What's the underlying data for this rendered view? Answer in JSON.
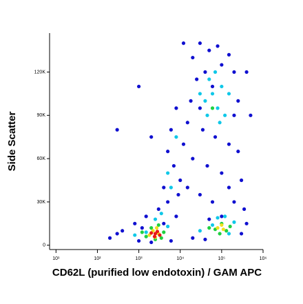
{
  "chart_data": {
    "type": "scatter",
    "x_label": "CD62L (purified low endotoxin) / GAM APC",
    "y_label": "Side Scatter",
    "xscale": "log",
    "xlim": [
      7,
      1000000
    ],
    "xticks": [
      {
        "value": 10,
        "label": "10¹"
      },
      {
        "value": 100,
        "label": "10²"
      },
      {
        "value": 1000,
        "label": "10³"
      },
      {
        "value": 10000,
        "label": "10⁴"
      },
      {
        "value": 100000,
        "label": "10⁵"
      },
      {
        "value": 1000000,
        "label": "10⁶"
      }
    ],
    "ylim": [
      -3000,
      147000
    ],
    "yticks": [
      0,
      {
        "value": 30000,
        "label": "30K"
      },
      {
        "value": 60000,
        "label": "60K"
      },
      {
        "value": 90000,
        "label": "90K"
      },
      {
        "value": 120000,
        "label": "120K"
      }
    ],
    "series": [
      {
        "color": "#1010d0",
        "x": [
          20000,
          30000,
          50000,
          80000,
          150000,
          200000,
          25000,
          40000,
          100000,
          250000,
          18000,
          30000,
          60000,
          200000,
          15000,
          35000,
          70000,
          150000,
          250000,
          12000,
          20000,
          45000,
          100000,
          300000,
          8000,
          6000,
          5000,
          7000,
          10000,
          4000,
          5000,
          9000,
          15000,
          30000,
          60000,
          200000,
          350000,
          3000,
          1500,
          800,
          400,
          200,
          300,
          1000,
          2000,
          6000,
          20000,
          40000,
          300000,
          400000,
          100000,
          50000,
          1200,
          4000,
          8000,
          150000,
          300,
          1000,
          2000,
          500000,
          400000,
          12000
        ],
        "values": [
          130000,
          140000,
          135000,
          138000,
          132000,
          120000,
          115000,
          120000,
          125000,
          100000,
          100000,
          95000,
          110000,
          90000,
          85000,
          80000,
          75000,
          70000,
          65000,
          70000,
          60000,
          55000,
          50000,
          45000,
          95000,
          80000,
          65000,
          55000,
          45000,
          40000,
          30000,
          35000,
          40000,
          35000,
          30000,
          30000,
          25000,
          25000,
          20000,
          15000,
          10000,
          5000,
          8000,
          3000,
          2000,
          3000,
          5000,
          4000,
          8000,
          15000,
          20000,
          18000,
          12000,
          15000,
          20000,
          40000,
          80000,
          110000,
          75000,
          90000,
          120000,
          140000
        ]
      },
      {
        "color": "#10c8e8",
        "x": [
          40000,
          60000,
          80000,
          100000,
          50000,
          120000,
          30000,
          70000,
          90000,
          45000,
          150000,
          8000,
          5000,
          6000,
          3500,
          2500,
          1500,
          5000,
          800,
          120000,
          60000,
          200000,
          30000,
          150000,
          80000
        ],
        "values": [
          100000,
          105000,
          95000,
          110000,
          115000,
          90000,
          105000,
          120000,
          85000,
          90000,
          105000,
          75000,
          50000,
          40000,
          22000,
          18000,
          9000,
          13000,
          7000,
          20000,
          14000,
          16000,
          10000,
          8000,
          19000
        ]
      },
      {
        "color": "#20d040",
        "x": [
          2000,
          3000,
          1500,
          4000,
          2500,
          1200,
          3500,
          70000,
          100000,
          130000,
          50000,
          90000,
          160000,
          60000
        ],
        "values": [
          12000,
          14000,
          6000,
          9000,
          4000,
          9000,
          5000,
          11000,
          15000,
          10000,
          12000,
          8000,
          13000,
          95000
        ]
      },
      {
        "color": "#f0e020",
        "x": [
          2200,
          3000,
          1800,
          2700,
          80000,
          110000,
          100000,
          2500
        ],
        "values": [
          10000,
          8000,
          7000,
          12000,
          12000,
          11000,
          14000,
          5500
        ]
      },
      {
        "color": "#e81818",
        "x": [
          2500,
          2800,
          2000,
          3200,
          2400
        ],
        "values": [
          8000,
          9500,
          8500,
          7000,
          6000
        ]
      }
    ]
  }
}
